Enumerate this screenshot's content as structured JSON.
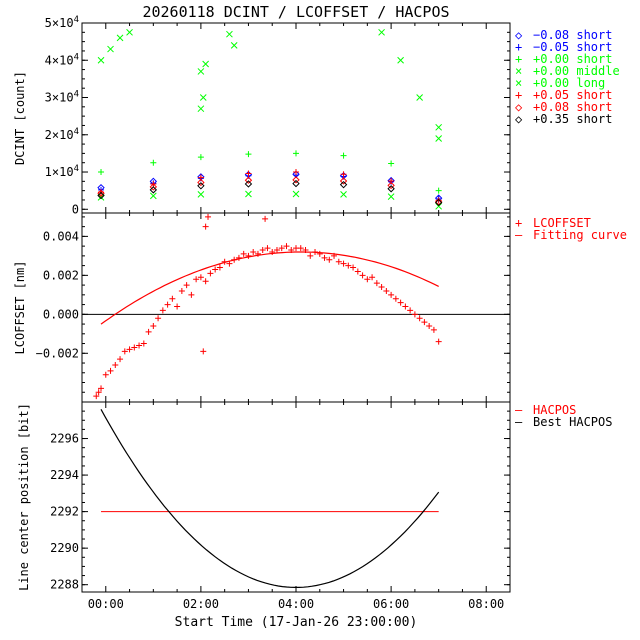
{
  "title": "20260118 DCINT / LCOFFSET / HACPOS",
  "colors": {
    "black": "#000000",
    "blue": "#0000ff",
    "green": "#00ff00",
    "red": "#ff0000"
  },
  "chart_data": [
    {
      "type": "scatter",
      "name": "dcint",
      "ylabel": "DCINT [count]",
      "xlim": [
        -0.5,
        8.5
      ],
      "ylim": [
        -1000,
        50000
      ],
      "y_ticks": [
        0,
        10000,
        20000,
        30000,
        40000,
        50000
      ],
      "y_tick_labels": [
        {
          "base": "0",
          "exp": ""
        },
        {
          "base": "1×10",
          "exp": "4"
        },
        {
          "base": "2×10",
          "exp": "4"
        },
        {
          "base": "3×10",
          "exp": "4"
        },
        {
          "base": "4×10",
          "exp": "4"
        },
        {
          "base": "5×10",
          "exp": "4"
        }
      ],
      "legend": [
        {
          "symbol": "◇",
          "text": "−0.08 short",
          "color": "#0000ff"
        },
        {
          "symbol": "+",
          "text": "−0.05 short",
          "color": "#0000ff"
        },
        {
          "symbol": "+",
          "text": "+0.00 short",
          "color": "#00ff00"
        },
        {
          "symbol": "×",
          "text": "+0.00 middle",
          "color": "#00ff00"
        },
        {
          "symbol": "×",
          "text": "+0.00 long",
          "color": "#00ff00"
        },
        {
          "symbol": "+",
          "text": "+0.05 short",
          "color": "#ff0000"
        },
        {
          "symbol": "◇",
          "text": "+0.08 short",
          "color": "#ff0000"
        },
        {
          "symbol": "◇",
          "text": "+0.35 short",
          "color": "#000000"
        }
      ],
      "series": [
        {
          "name": "−0.08 short",
          "color": "#0000ff",
          "marker": "diamond",
          "x": [
            -0.1,
            1.0,
            2.0,
            3.0,
            4.0,
            5.0,
            6.0,
            7.0
          ],
          "y": [
            5800,
            7500,
            8700,
            9300,
            9400,
            9000,
            7700,
            3000
          ]
        },
        {
          "name": "−0.05 short",
          "color": "#0000ff",
          "marker": "plus",
          "x": [
            -0.1,
            1.0,
            2.0,
            3.0,
            4.0,
            5.0,
            6.0,
            7.0
          ],
          "y": [
            5200,
            7000,
            8300,
            9000,
            9200,
            8800,
            7400,
            2800
          ]
        },
        {
          "name": "+0.00 short",
          "color": "#00ff00",
          "marker": "plus",
          "x": [
            -0.1,
            1.0,
            2.0,
            3.0,
            4.0,
            5.0,
            6.0,
            7.0
          ],
          "y": [
            10000,
            12500,
            14000,
            14800,
            15000,
            14400,
            12300,
            5000
          ]
        },
        {
          "name": "+0.00 middle",
          "color": "#00ff00",
          "marker": "x",
          "x": [
            -0.1,
            0.1,
            0.3,
            0.5,
            2.0,
            2.1,
            2.6,
            2.7,
            5.8,
            6.2,
            6.6,
            7.0
          ],
          "y": [
            40000,
            43000,
            46000,
            47500,
            37000,
            39000,
            47000,
            44000,
            47500,
            40000,
            30000,
            22000
          ]
        },
        {
          "name": "+0.00 long",
          "color": "#00ff00",
          "marker": "x",
          "x": [
            -0.1,
            1.0,
            2.0,
            3.0,
            4.0,
            5.0,
            6.0,
            7.0,
            2.0,
            2.05,
            7.0
          ],
          "y": [
            3200,
            3600,
            4000,
            4100,
            4100,
            4000,
            3400,
            800,
            27000,
            30000,
            19000
          ]
        },
        {
          "name": "+0.05 short",
          "color": "#ff0000",
          "marker": "plus",
          "x": [
            -0.1,
            1.0,
            2.0,
            3.0,
            4.0,
            5.0,
            6.0,
            7.0
          ],
          "y": [
            4600,
            6800,
            8500,
            9600,
            10000,
            9400,
            7600,
            2400
          ]
        },
        {
          "name": "+0.08 short",
          "color": "#ff0000",
          "marker": "diamond",
          "x": [
            -0.1,
            1.0,
            2.0,
            3.0,
            4.0,
            5.0,
            6.0,
            7.0
          ],
          "y": [
            4300,
            6000,
            7200,
            7800,
            7900,
            7600,
            6400,
            2000
          ]
        },
        {
          "name": "+0.35 short",
          "color": "#000000",
          "marker": "diamond",
          "x": [
            -0.1,
            1.0,
            2.0,
            3.0,
            4.0,
            5.0,
            6.0,
            7.0
          ],
          "y": [
            3700,
            5200,
            6300,
            6800,
            6900,
            6600,
            5500,
            1800
          ]
        }
      ]
    },
    {
      "type": "scatter",
      "name": "lcoffset",
      "ylabel": "LCOFFSET [nm]",
      "xlim": [
        -0.5,
        8.5
      ],
      "ylim": [
        -0.0045,
        0.0052
      ],
      "y_ticks": [
        -0.002,
        0.0,
        0.002,
        0.004
      ],
      "y_tick_labels": [
        "−0.002",
        "0.000",
        "0.002",
        "0.004"
      ],
      "zero_line": true,
      "legend": [
        {
          "symbol": "+",
          "text": "LCOFFSET",
          "color": "#ff0000"
        },
        {
          "symbol": "—",
          "text": "Fitting curve",
          "color": "#ff0000"
        }
      ],
      "series": [
        {
          "name": "LCOFFSET",
          "color": "#ff0000",
          "marker": "plus",
          "x": [
            -0.2,
            -0.15,
            -0.1,
            0.0,
            0.1,
            0.2,
            0.3,
            0.4,
            0.5,
            0.6,
            0.7,
            0.8,
            0.9,
            1.0,
            1.1,
            1.2,
            1.3,
            1.4,
            1.5,
            1.6,
            1.7,
            1.8,
            1.9,
            2.0,
            2.1,
            2.2,
            2.3,
            2.4,
            2.5,
            2.6,
            2.7,
            2.8,
            2.9,
            3.0,
            3.1,
            3.2,
            3.3,
            3.4,
            3.5,
            3.6,
            3.7,
            3.8,
            3.9,
            4.0,
            4.1,
            4.2,
            4.3,
            4.4,
            4.5,
            4.6,
            4.7,
            4.8,
            4.9,
            5.0,
            5.1,
            5.2,
            5.3,
            5.4,
            5.5,
            5.6,
            5.7,
            5.8,
            5.9,
            6.0,
            6.1,
            6.2,
            6.3,
            6.4,
            6.5,
            6.6,
            6.7,
            6.8,
            6.9,
            7.0,
            2.05,
            2.15,
            3.35,
            2.1
          ],
          "y": [
            -0.0042,
            -0.004,
            -0.0038,
            -0.0031,
            -0.0029,
            -0.0026,
            -0.0023,
            -0.0019,
            -0.0018,
            -0.0017,
            -0.0016,
            -0.0015,
            -0.0009,
            -0.0006,
            -0.0002,
            0.0002,
            0.0005,
            0.0008,
            0.0004,
            0.0012,
            0.0015,
            0.001,
            0.0018,
            0.0019,
            0.0017,
            0.0021,
            0.0023,
            0.0024,
            0.0027,
            0.0026,
            0.0028,
            0.0029,
            0.0031,
            0.003,
            0.0032,
            0.0031,
            0.0033,
            0.0034,
            0.0032,
            0.0033,
            0.0034,
            0.0035,
            0.0033,
            0.0034,
            0.0034,
            0.0033,
            0.003,
            0.0032,
            0.0031,
            0.0029,
            0.0028,
            0.003,
            0.0027,
            0.0026,
            0.0025,
            0.0024,
            0.0022,
            0.002,
            0.0018,
            0.0019,
            0.0016,
            0.0014,
            0.0012,
            0.001,
            0.0008,
            0.0006,
            0.0004,
            0.0002,
            0.0,
            -0.0002,
            -0.0004,
            -0.0006,
            -0.0008,
            -0.0014,
            -0.0019,
            0.005,
            0.0049,
            0.0045
          ]
        },
        {
          "name": "Fitting curve",
          "color": "#ff0000",
          "marker": "line",
          "curve": "quadratic",
          "vertex_x": 4.1,
          "vertex_y": 0.0032,
          "x_range": [
            -0.1,
            7.0
          ],
          "coeff": 0.00021
        }
      ]
    },
    {
      "type": "line",
      "name": "hacpos",
      "ylabel": "Line center position [bit]",
      "xlabel": "Start Time (17-Jan-26 23:00:00)",
      "xlim": [
        -0.5,
        8.5
      ],
      "ylim": [
        2287.6,
        2298.0
      ],
      "x_ticks": [
        0,
        2,
        4,
        6,
        8
      ],
      "x_tick_labels": [
        "00:00",
        "02:00",
        "04:00",
        "06:00",
        "08:00"
      ],
      "y_ticks": [
        2288,
        2290,
        2292,
        2294,
        2296
      ],
      "y_tick_labels": [
        "2288",
        "2290",
        "2292",
        "2294",
        "2296"
      ],
      "legend": [
        {
          "symbol": "—",
          "text": "HACPOS",
          "color": "#ff0000"
        },
        {
          "symbol": "—",
          "text": "Best HACPOS",
          "color": "#000000"
        }
      ],
      "series": [
        {
          "name": "HACPOS",
          "color": "#ff0000",
          "x": [
            -0.1,
            7.0
          ],
          "y": [
            2292.0,
            2292.0
          ]
        },
        {
          "name": "Best HACPOS",
          "color": "#000000",
          "curve": "quadratic",
          "vertex_x": 4.0,
          "vertex_y": 2287.85,
          "x_range": [
            -0.1,
            7.0
          ],
          "coeff": 0.58
        }
      ]
    }
  ]
}
